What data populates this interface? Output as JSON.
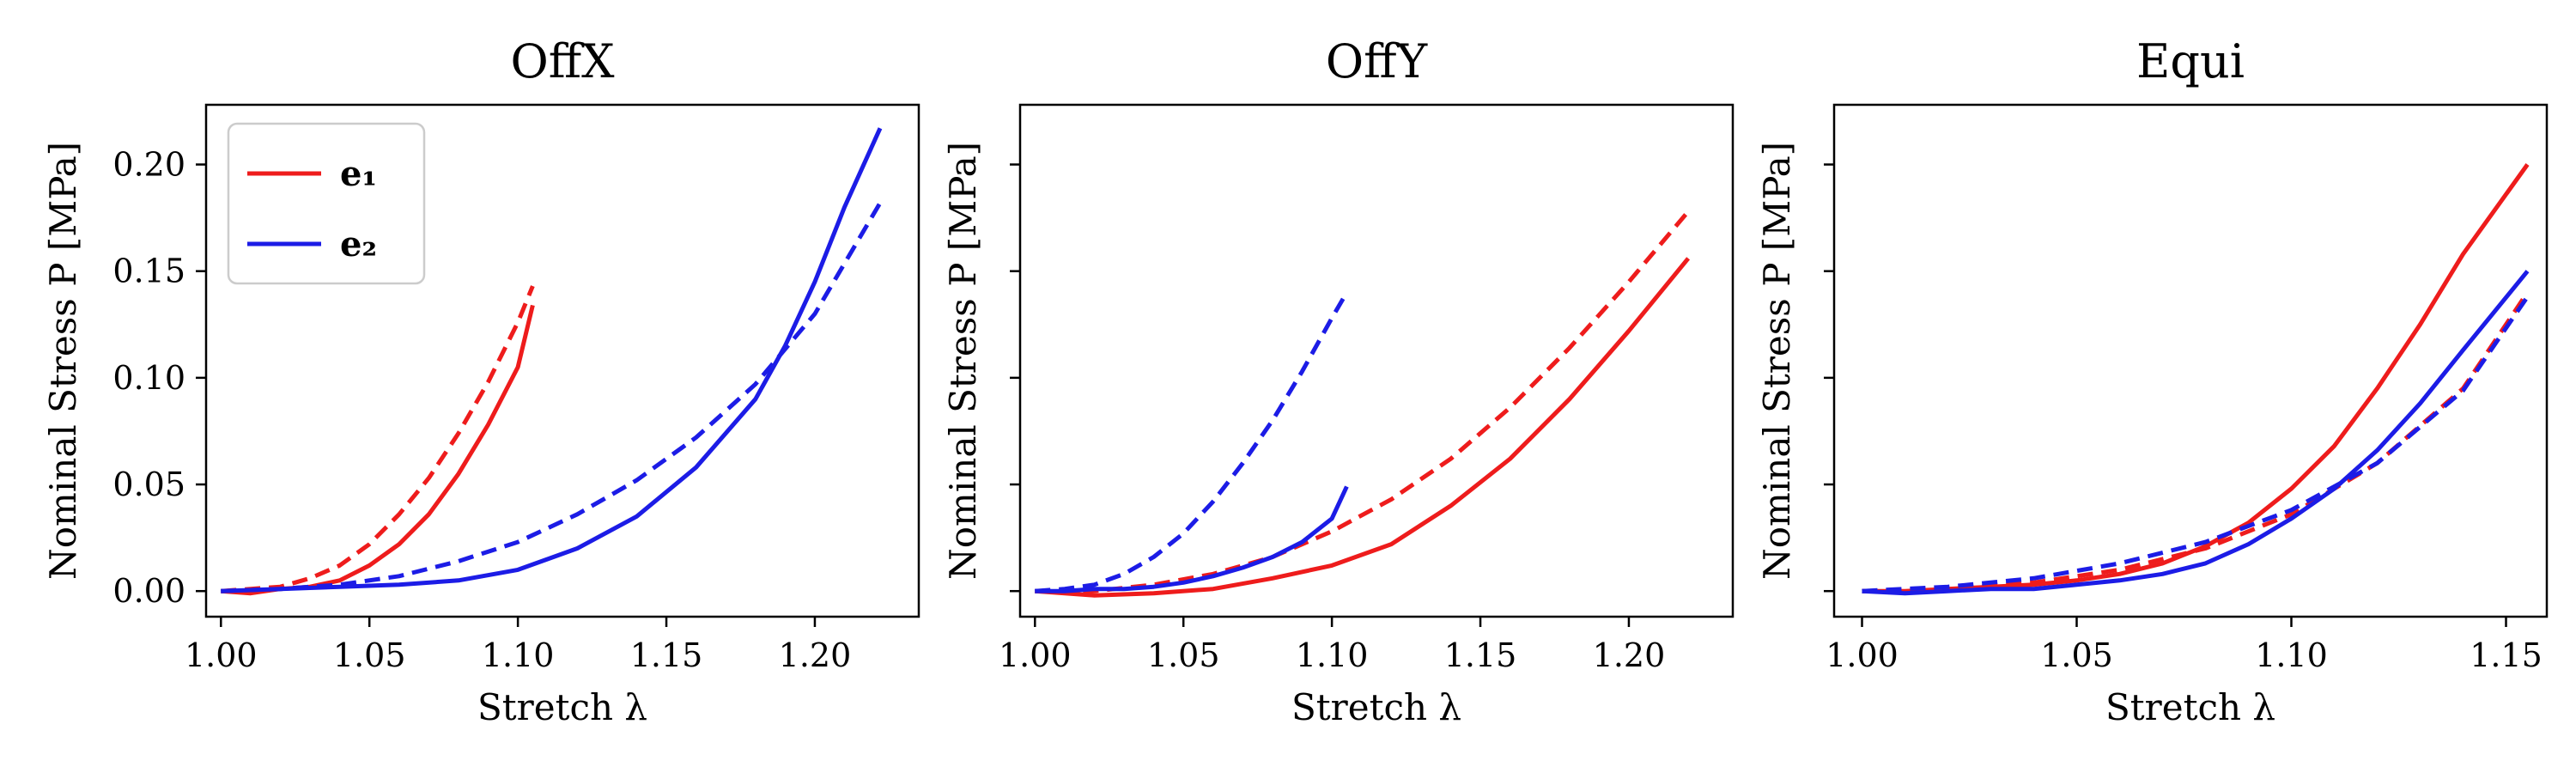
{
  "chart_data": [
    {
      "type": "line",
      "title": "OffX",
      "xlabel": "Stretch λ",
      "ylabel": "Nominal Stress P [MPa]",
      "xlim": [
        0.995,
        1.235
      ],
      "ylim": [
        -0.012,
        0.228
      ],
      "xticks": [
        "1.00",
        "1.05",
        "1.10",
        "1.15",
        "1.20"
      ],
      "yticks": [
        "0.00",
        "0.05",
        "0.10",
        "0.15",
        "0.20"
      ],
      "show_ytick_labels": true,
      "legend": {
        "placement": "top-left",
        "entries": [
          {
            "label": "e₁",
            "color": "#ee1c1c"
          },
          {
            "label": "e₂",
            "color": "#1c1ce6"
          }
        ]
      },
      "series": [
        {
          "color": "#ee1c1c",
          "style": "solid",
          "x": [
            1.0,
            1.01,
            1.02,
            1.03,
            1.04,
            1.05,
            1.06,
            1.07,
            1.08,
            1.09,
            1.1,
            1.105
          ],
          "y": [
            0.0,
            -0.001,
            0.001,
            0.002,
            0.005,
            0.012,
            0.022,
            0.036,
            0.055,
            0.078,
            0.105,
            0.134
          ]
        },
        {
          "color": "#ee1c1c",
          "style": "dashed",
          "x": [
            1.0,
            1.01,
            1.02,
            1.03,
            1.04,
            1.05,
            1.06,
            1.07,
            1.08,
            1.09,
            1.1,
            1.105
          ],
          "y": [
            0.0,
            0.001,
            0.002,
            0.006,
            0.012,
            0.022,
            0.036,
            0.053,
            0.074,
            0.098,
            0.126,
            0.143
          ]
        },
        {
          "color": "#1c1ce6",
          "style": "solid",
          "x": [
            1.0,
            1.02,
            1.04,
            1.06,
            1.08,
            1.1,
            1.12,
            1.14,
            1.16,
            1.18,
            1.19,
            1.2,
            1.21,
            1.222
          ],
          "y": [
            0.0,
            0.001,
            0.002,
            0.003,
            0.005,
            0.01,
            0.02,
            0.035,
            0.058,
            0.09,
            0.115,
            0.145,
            0.18,
            0.217
          ]
        },
        {
          "color": "#1c1ce6",
          "style": "dashed",
          "x": [
            1.0,
            1.02,
            1.04,
            1.06,
            1.08,
            1.1,
            1.12,
            1.14,
            1.16,
            1.18,
            1.2,
            1.222
          ],
          "y": [
            0.0,
            0.001,
            0.003,
            0.007,
            0.014,
            0.023,
            0.036,
            0.052,
            0.072,
            0.097,
            0.13,
            0.182
          ]
        }
      ]
    },
    {
      "type": "line",
      "title": "OffY",
      "xlabel": "Stretch λ",
      "ylabel": "Nominal Stress P [MPa]",
      "xlim": [
        0.995,
        1.235
      ],
      "ylim": [
        -0.012,
        0.228
      ],
      "xticks": [
        "1.00",
        "1.05",
        "1.10",
        "1.15",
        "1.20"
      ],
      "yticks": [
        "0.00",
        "0.05",
        "0.10",
        "0.15",
        "0.20"
      ],
      "show_ytick_labels": false,
      "series": [
        {
          "color": "#ee1c1c",
          "style": "solid",
          "x": [
            1.0,
            1.02,
            1.04,
            1.06,
            1.08,
            1.1,
            1.12,
            1.14,
            1.16,
            1.18,
            1.2,
            1.22
          ],
          "y": [
            0.0,
            -0.002,
            -0.001,
            0.001,
            0.006,
            0.012,
            0.022,
            0.04,
            0.062,
            0.09,
            0.122,
            0.156
          ]
        },
        {
          "color": "#ee1c1c",
          "style": "dashed",
          "x": [
            1.0,
            1.02,
            1.04,
            1.06,
            1.08,
            1.1,
            1.12,
            1.14,
            1.16,
            1.18,
            1.2,
            1.22
          ],
          "y": [
            0.0,
            0.0,
            0.003,
            0.008,
            0.016,
            0.028,
            0.043,
            0.062,
            0.086,
            0.114,
            0.145,
            0.178
          ]
        },
        {
          "color": "#1c1ce6",
          "style": "solid",
          "x": [
            1.0,
            1.01,
            1.02,
            1.03,
            1.04,
            1.05,
            1.06,
            1.07,
            1.08,
            1.09,
            1.1,
            1.105
          ],
          "y": [
            0.0,
            0.0,
            0.001,
            0.001,
            0.002,
            0.004,
            0.007,
            0.011,
            0.016,
            0.023,
            0.034,
            0.049
          ]
        },
        {
          "color": "#1c1ce6",
          "style": "dashed",
          "x": [
            1.0,
            1.01,
            1.02,
            1.03,
            1.04,
            1.05,
            1.06,
            1.07,
            1.08,
            1.09,
            1.1,
            1.105
          ],
          "y": [
            0.0,
            0.001,
            0.003,
            0.008,
            0.016,
            0.027,
            0.042,
            0.06,
            0.08,
            0.103,
            0.128,
            0.14
          ]
        }
      ]
    },
    {
      "type": "line",
      "title": "Equi",
      "xlabel": "Stretch λ",
      "ylabel": "Nominal Stress P [MPa]",
      "xlim": [
        0.9935,
        1.1595
      ],
      "ylim": [
        -0.012,
        0.228
      ],
      "xticks": [
        "1.00",
        "1.05",
        "1.10",
        "1.15"
      ],
      "yticks": [
        "0.00",
        "0.05",
        "0.10",
        "0.15",
        "0.20"
      ],
      "show_ytick_labels": false,
      "series": [
        {
          "color": "#ee1c1c",
          "style": "solid",
          "x": [
            1.0,
            1.01,
            1.02,
            1.03,
            1.04,
            1.05,
            1.06,
            1.07,
            1.08,
            1.09,
            1.1,
            1.11,
            1.12,
            1.13,
            1.14,
            1.155
          ],
          "y": [
            0.0,
            0.0,
            0.001,
            0.002,
            0.003,
            0.005,
            0.008,
            0.013,
            0.021,
            0.032,
            0.048,
            0.068,
            0.095,
            0.125,
            0.158,
            0.2
          ]
        },
        {
          "color": "#ee1c1c",
          "style": "dashed",
          "x": [
            1.0,
            1.02,
            1.04,
            1.06,
            1.08,
            1.1,
            1.12,
            1.14,
            1.155
          ],
          "y": [
            0.0,
            0.001,
            0.004,
            0.01,
            0.02,
            0.036,
            0.06,
            0.095,
            0.14
          ]
        },
        {
          "color": "#1c1ce6",
          "style": "solid",
          "x": [
            1.0,
            1.01,
            1.02,
            1.03,
            1.04,
            1.05,
            1.06,
            1.07,
            1.08,
            1.09,
            1.1,
            1.11,
            1.12,
            1.13,
            1.14,
            1.155
          ],
          "y": [
            0.0,
            -0.001,
            0.0,
            0.001,
            0.001,
            0.003,
            0.005,
            0.008,
            0.013,
            0.022,
            0.034,
            0.048,
            0.066,
            0.088,
            0.113,
            0.15
          ]
        },
        {
          "color": "#1c1ce6",
          "style": "dashed",
          "x": [
            1.0,
            1.02,
            1.04,
            1.06,
            1.08,
            1.1,
            1.12,
            1.14,
            1.155
          ],
          "y": [
            0.0,
            0.002,
            0.006,
            0.013,
            0.023,
            0.038,
            0.06,
            0.094,
            0.138
          ]
        }
      ]
    }
  ]
}
